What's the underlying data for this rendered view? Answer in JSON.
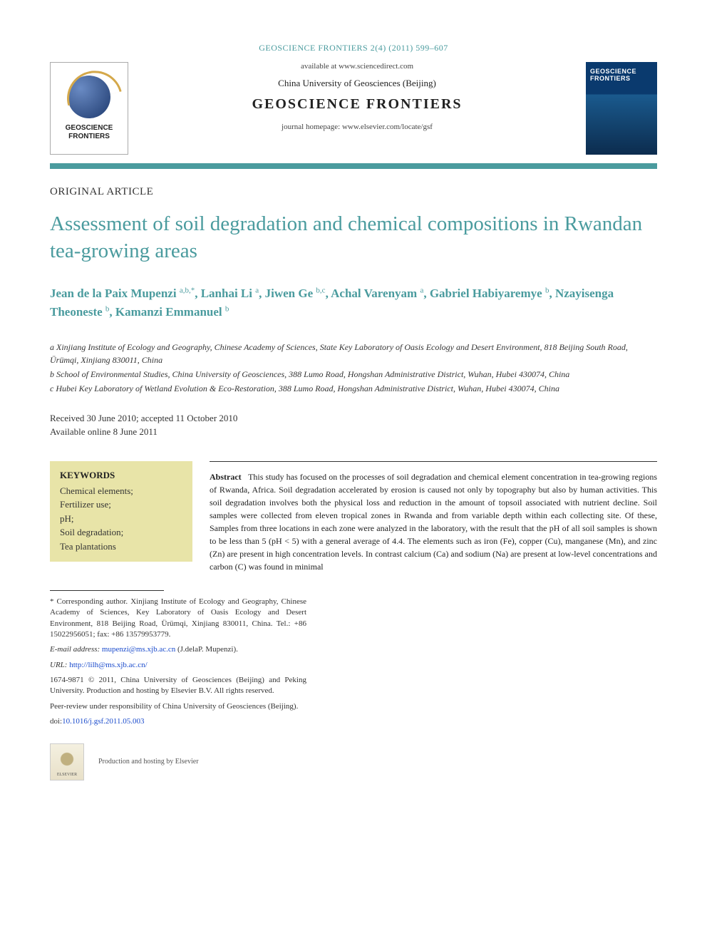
{
  "header": {
    "running_head": "GEOSCIENCE FRONTIERS 2(4) (2011) 599–607",
    "available_at": "available at www.sciencedirect.com",
    "university": "China University of Geosciences (Beijing)",
    "journal": "GEOSCIENCE FRONTIERS",
    "homepage": "journal homepage: www.elsevier.com/locate/gsf",
    "logo_left_text": "GEOSCIENCE FRONTIERS",
    "cover_title": "GEOSCIENCE FRONTIERS"
  },
  "article_type": "ORIGINAL ARTICLE",
  "title": "Assessment of soil degradation and chemical compositions in Rwandan tea-growing areas",
  "authors_html": "Jean de la Paix Mupenzi <sup>a,b,*</sup>, Lanhai Li <sup>a</sup>, Jiwen Ge <sup>b,c</sup>, Achal Varenyam <sup>a</sup>, Gabriel Habiyaremye <sup>b</sup>, Nzayisenga Theoneste <sup>b</sup>, Kamanzi Emmanuel <sup>b</sup>",
  "affiliations": {
    "a": "a Xinjiang Institute of Ecology and Geography, Chinese Academy of Sciences, State Key Laboratory of Oasis Ecology and Desert Environment, 818 Beijing South Road, Ürümqi, Xinjiang 830011, China",
    "b": "b School of Environmental Studies, China University of Geosciences, 388 Lumo Road, Hongshan Administrative District, Wuhan, Hubei 430074, China",
    "c": "c Hubei Key Laboratory of Wetland Evolution & Eco-Restoration, 388 Lumo Road, Hongshan Administrative District, Wuhan, Hubei 430074, China"
  },
  "dates": {
    "received_accepted": "Received 30 June 2010; accepted 11 October 2010",
    "online": "Available online 8 June 2011"
  },
  "keywords": {
    "heading": "KEYWORDS",
    "items": "Chemical elements;\nFertilizer use;\npH;\nSoil degradation;\nTea plantations"
  },
  "abstract": {
    "label": "Abstract",
    "text": "This study has focused on the processes of soil degradation and chemical element concentration in tea-growing regions of Rwanda, Africa. Soil degradation accelerated by erosion is caused not only by topography but also by human activities. This soil degradation involves both the physical loss and reduction in the amount of topsoil associated with nutrient decline. Soil samples were collected from eleven tropical zones in Rwanda and from variable depth within each collecting site. Of these, Samples from three locations in each zone were analyzed in the laboratory, with the result that the pH of all soil samples is shown to be less than 5 (pH < 5) with a general average of 4.4. The elements such as iron (Fe), copper (Cu), manganese (Mn), and zinc (Zn) are present in high concentration levels. In contrast calcium (Ca) and sodium (Na) are present at low-level concentrations and carbon (C) was found in minimal"
  },
  "footnotes": {
    "corresponding": "* Corresponding author. Xinjiang Institute of Ecology and Geography, Chinese Academy of Sciences, Key Laboratory of Oasis Ecology and Desert Environment, 818 Beijing Road, Ürümqi, Xinjiang 830011, China. Tel.: +86 15022956051; fax: +86 13579953779.",
    "email_label": "E-mail address:",
    "email": "mupenzi@ms.xjb.ac.cn",
    "email_suffix": "(J.delaP. Mupenzi).",
    "url_label": "URL:",
    "url": "http://lilh@ms.xjb.ac.cn/",
    "issn_line": "1674-9871 © 2011, China University of Geosciences (Beijing) and Peking University. Production and hosting by Elsevier B.V. All rights reserved.",
    "peer_review": "Peer-review under responsibility of China University of Geosciences (Beijing).",
    "doi_label": "doi:",
    "doi": "10.1016/j.gsf.2011.05.003"
  },
  "elsevier": {
    "logo_caption": "ELSEVIER",
    "hosting": "Production and hosting by Elsevier"
  },
  "colors": {
    "teal": "#4a9b9e",
    "keywords_bg": "#e8e4a8",
    "link": "#1a4bcc"
  }
}
